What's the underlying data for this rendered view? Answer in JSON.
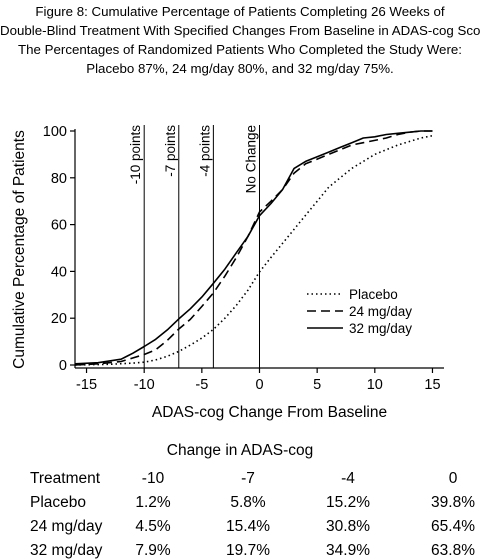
{
  "caption": {
    "lines": [
      "Figure 8: Cumulative Percentage of Patients Completing 26 Weeks of",
      "Double-Blind Treatment With Specified Changes From Baseline in ADAS-cog Scores.",
      "The Percentages of Randomized Patients Who Completed the Study Were:",
      "Placebo 87%, 24 mg/day 80%, and 32 mg/day 75%."
    ]
  },
  "chart_data": {
    "type": "line",
    "xlabel": "ADAS-cog Change From Baseline",
    "ylabel": "Cumulative Percentage of Patients",
    "xlim": [
      -16,
      16
    ],
    "ylim": [
      0,
      100
    ],
    "xticks": [
      -15,
      -10,
      -5,
      0,
      5,
      10,
      15
    ],
    "xtick_labels": [
      "-15",
      "-10",
      "-5",
      "0",
      "5",
      "10",
      "15"
    ],
    "yticks": [
      0,
      20,
      40,
      60,
      80,
      100
    ],
    "ytick_labels": [
      "0",
      "20",
      "40",
      "60",
      "80",
      "100"
    ],
    "grid": false,
    "legend_position": "right-center",
    "reference_lines": [
      {
        "x": -10,
        "label": "-10 points"
      },
      {
        "x": -7,
        "label": "-7 points"
      },
      {
        "x": -4,
        "label": "-4 points"
      },
      {
        "x": 0,
        "label": "No Change"
      }
    ],
    "series": [
      {
        "name": "Placebo",
        "style": "dotted",
        "x": [
          -16,
          -13,
          -11,
          -10,
          -9,
          -8,
          -7,
          -6,
          -5,
          -4,
          -3,
          -2,
          -1,
          0,
          1,
          2,
          3,
          4,
          5,
          6,
          7,
          8,
          9,
          10,
          11,
          12,
          13,
          14,
          15
        ],
        "y": [
          0,
          0.3,
          0.8,
          1.2,
          2.2,
          3.7,
          5.8,
          8.5,
          11.5,
          15.2,
          20,
          25.5,
          32,
          39.8,
          46,
          52,
          58,
          64,
          70,
          76,
          80,
          84,
          87,
          90,
          92,
          94,
          95.5,
          97,
          98
        ]
      },
      {
        "name": "24 mg/day",
        "style": "dashed",
        "x": [
          -16,
          -14,
          -12,
          -11,
          -10,
          -9,
          -8,
          -7,
          -6,
          -5,
          -4,
          -3,
          -2,
          -1,
          0,
          1,
          2,
          3,
          4,
          5,
          6,
          7,
          8,
          9,
          10,
          11,
          12,
          13,
          14,
          15
        ],
        "y": [
          0,
          0.5,
          1.5,
          3,
          4.5,
          6.5,
          10.5,
          15.4,
          19.5,
          25,
          30.8,
          38,
          46,
          55,
          65.4,
          70,
          75,
          82,
          86,
          88,
          90,
          92,
          94,
          95,
          96,
          97,
          98.5,
          99.5,
          100,
          100
        ]
      },
      {
        "name": "32 mg/day",
        "style": "solid",
        "x": [
          -16,
          -14,
          -12,
          -11,
          -10,
          -9,
          -8,
          -7,
          -6,
          -5,
          -4,
          -3,
          -2,
          -1,
          0,
          1,
          2,
          3,
          4,
          5,
          6,
          7,
          8,
          9,
          10,
          11,
          12,
          13,
          14,
          15
        ],
        "y": [
          0.5,
          1,
          2.5,
          5,
          7.9,
          11,
          15,
          19.7,
          24,
          29,
          34.9,
          41,
          48,
          55,
          63.8,
          69,
          75,
          84,
          87,
          89,
          91,
          93,
          95,
          97,
          97.5,
          98.5,
          99,
          99.5,
          100,
          100
        ]
      }
    ]
  },
  "table": {
    "title": "Change in ADAS-cog",
    "columns": [
      "Treatment",
      "-10",
      "-7",
      "-4",
      "0"
    ],
    "rows": [
      [
        "Placebo",
        "1.2%",
        "5.8%",
        "15.2%",
        "39.8%"
      ],
      [
        "24 mg/day",
        "4.5%",
        "15.4%",
        "30.8%",
        "65.4%"
      ],
      [
        "32 mg/day",
        "7.9%",
        "19.7%",
        "34.9%",
        "63.8%"
      ]
    ]
  }
}
